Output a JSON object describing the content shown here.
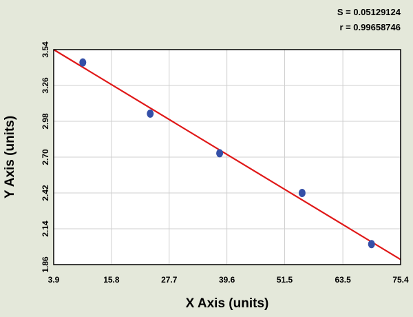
{
  "chart_data": {
    "type": "scatter",
    "annotations": [
      "S = 0.05129124",
      "r = 0.99658746"
    ],
    "x_label": "X Axis (units)",
    "y_label": "Y Axis (units)",
    "xlim": [
      3.9,
      75.4
    ],
    "xticks": [
      3.9,
      15.8,
      27.7,
      39.6,
      51.5,
      63.5,
      75.4
    ],
    "ylim": [
      1.86,
      3.54
    ],
    "yticks": [
      1.86,
      2.14,
      2.42,
      {
        "value": 2.7,
        "label": "2.70"
      },
      2.98,
      3.26,
      3.54
    ],
    "grid": true,
    "points": {
      "color": "#3550a8",
      "x": [
        9.9,
        23.8,
        38.1,
        55.1,
        69.4
      ],
      "y": [
        3.44,
        3.04,
        2.73,
        2.42,
        2.02
      ]
    },
    "fit": {
      "color": "#e01818",
      "x": [
        3.9,
        75.4
      ],
      "y": [
        3.54,
        1.9
      ]
    }
  }
}
